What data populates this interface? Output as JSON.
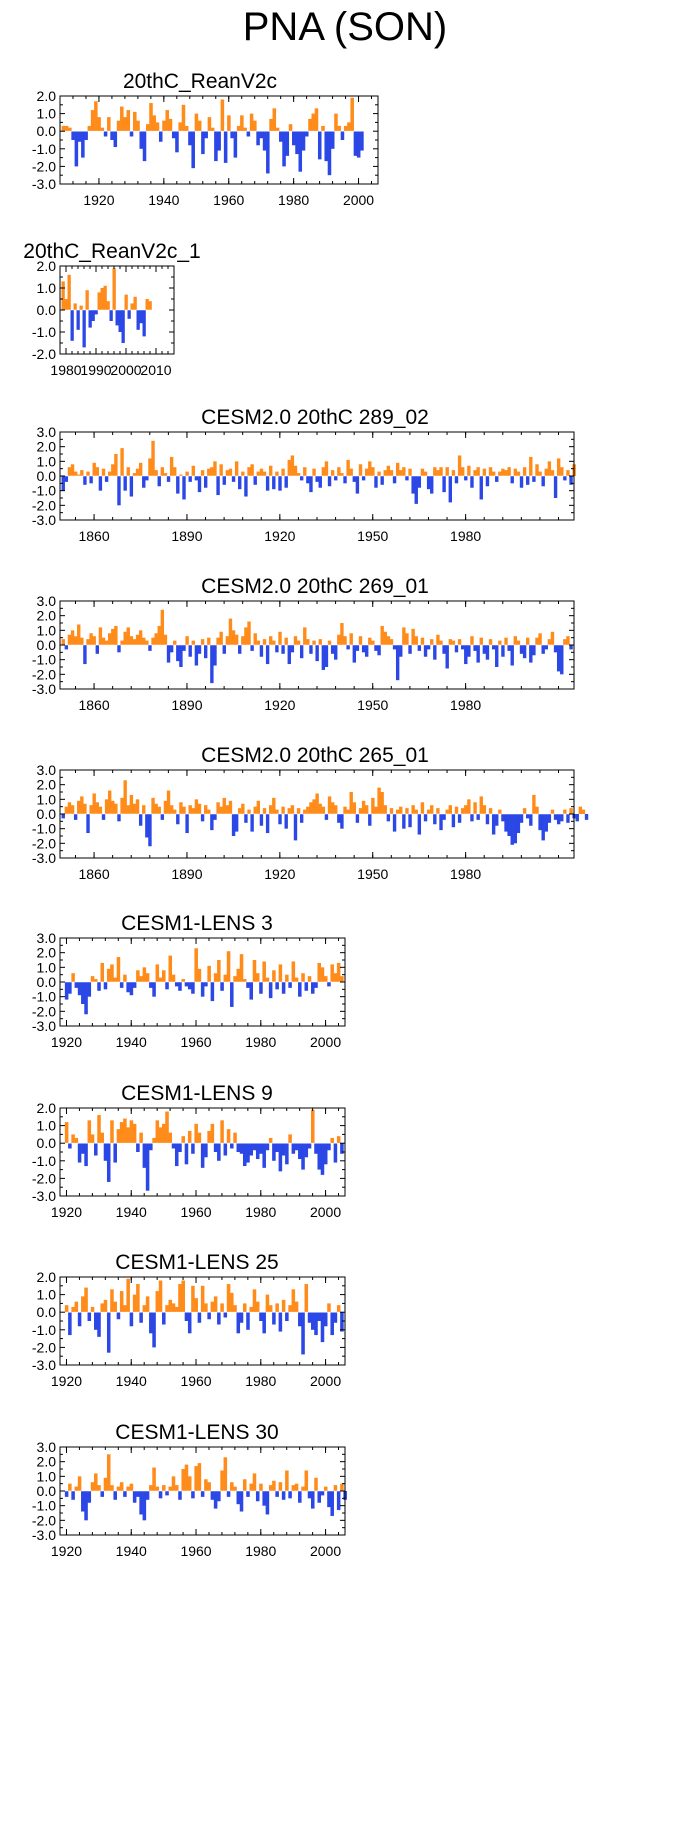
{
  "page_title": "PNA (SON)",
  "colors": {
    "positive": "#ff8c1a",
    "negative": "#2b47e6",
    "axis": "#000000"
  },
  "chart_data": [
    {
      "type": "area",
      "title": "20thC_ReanV2c",
      "x_range": [
        1908,
        2006
      ],
      "ylim": [
        -3,
        2
      ],
      "yticks": [
        "2.0",
        "1.0",
        "0.0",
        "-1.0",
        "-2.0",
        "-3.0"
      ],
      "ytick_values": [
        2,
        1,
        0,
        -1,
        -2,
        -3
      ],
      "xticks": [
        "1920",
        "1940",
        "1960",
        "1980",
        "2000"
      ],
      "xtick_values": [
        1920,
        1940,
        1960,
        1980,
        2000
      ],
      "x_start": 1909,
      "values": [
        0.3,
        0.3,
        0.2,
        -0.5,
        -2.0,
        -0.6,
        -1.5,
        -0.5,
        0.3,
        1.2,
        1.7,
        0.8,
        0.2,
        -0.3,
        0.8,
        -0.5,
        -0.9,
        0.6,
        1.4,
        0.8,
        1.2,
        -0.3,
        1.1,
        0.6,
        -1.0,
        -1.7,
        0.4,
        1.6,
        0.9,
        0.5,
        -0.6,
        0.6,
        1.2,
        0.7,
        -0.4,
        -1.2,
        0.5,
        1.5,
        0.3,
        -0.8,
        -2.1,
        1.0,
        0.6,
        -1.3,
        -0.4,
        0.8,
        0.2,
        -1.7,
        -1.1,
        1.8,
        -1.8,
        0.9,
        -0.4,
        -1.5,
        0.3,
        0.9,
        0.2,
        -0.3,
        1.0,
        0.6,
        -0.8,
        -0.4,
        -1.1,
        -2.4,
        0.7,
        1.3,
        0.2,
        -0.6,
        -2.0,
        -1.4,
        0.4,
        -0.8,
        -1.3,
        -2.3,
        -1.1,
        -0.3,
        0.7,
        1.0,
        1.3,
        -1.6,
        0.3,
        -1.7,
        -2.5,
        -1.0,
        1.0,
        0.3,
        -0.5,
        0.3,
        0.5,
        1.9,
        -1.4,
        -1.5,
        -1.1
      ]
    },
    {
      "type": "area",
      "title": "20thC_ReanV2c_1",
      "x_range": [
        1978,
        2016
      ],
      "ylim": [
        -2,
        2
      ],
      "yticks": [
        "2.0",
        "1.0",
        "0.0",
        "-1.0",
        "-2.0"
      ],
      "ytick_values": [
        2,
        1,
        0,
        -1,
        -2
      ],
      "xticks": [
        "1980",
        "1990",
        "2000",
        "2010"
      ],
      "xtick_values": [
        1980,
        1990,
        2000,
        2010
      ],
      "x_start": 1979,
      "values": [
        1.3,
        0.5,
        1.6,
        -1.4,
        0.3,
        -0.9,
        0.2,
        -1.7,
        0.9,
        -0.8,
        -0.5,
        -0.2,
        0.8,
        1.0,
        1.1,
        0.4,
        -0.5,
        1.9,
        -0.7,
        -1.0,
        -1.5,
        0.7,
        -0.4,
        0.3,
        0.6,
        -0.9,
        -0.6,
        -1.2,
        0.5,
        0.4
      ]
    },
    {
      "type": "area",
      "title": "CESM2.0 20thC 289_02",
      "x_range": [
        1849,
        2015
      ],
      "ylim": [
        -3,
        3
      ],
      "yticks": [
        "3.0",
        "2.0",
        "1.0",
        "0.0",
        "-1.0",
        "-2.0",
        "-3.0"
      ],
      "ytick_values": [
        3,
        2,
        1,
        0,
        -1,
        -2,
        -3
      ],
      "xticks": [
        "1860",
        "1890",
        "1920",
        "1950",
        "1980"
      ],
      "xtick_values": [
        1860,
        1890,
        1920,
        1950,
        1980
      ],
      "x_start": 1850,
      "values": [
        -1.0,
        -0.4,
        0.6,
        0.8,
        0.3,
        0.1,
        0.4,
        -0.6,
        0.3,
        -0.5,
        0.9,
        0.6,
        -1.0,
        0.5,
        -0.4,
        0.3,
        0.8,
        1.5,
        -2.0,
        1.9,
        -1.0,
        0.6,
        -1.4,
        0.2,
        0.5,
        0.9,
        -0.8,
        -0.3,
        1.2,
        2.4,
        0.4,
        -0.7,
        0.6,
        0.2,
        -0.4,
        1.3,
        0.6,
        -1.2,
        0.1,
        -1.6,
        0.3,
        -0.4,
        0.7,
        -0.3,
        -1.1,
        0.4,
        -0.8,
        0.5,
        0.6,
        1.0,
        -1.3,
        0.8,
        -0.6,
        0.4,
        0.5,
        -0.4,
        1.0,
        -0.9,
        0.3,
        -1.4,
        0.6,
        0.8,
        -0.6,
        0.3,
        0.5,
        0.3,
        -1.0,
        0.7,
        -0.9,
        0.3,
        -1.0,
        0.5,
        -0.8,
        1.1,
        1.4,
        0.7,
        0.2,
        -0.3,
        0.6,
        -0.5,
        -1.1,
        0.5,
        -0.4,
        -0.8,
        0.6,
        1.0,
        -0.7,
        0.4,
        -0.3,
        0.6,
        0.2,
        -0.5,
        1.1,
        0.5,
        -0.4,
        -1.2,
        0.8,
        -0.3,
        0.5,
        1.0,
        0.6,
        -0.8,
        0.3,
        -0.6,
        0.4,
        0.7,
        0.4,
        -0.5,
        0.9,
        0.4,
        0.6,
        -0.3,
        0.5,
        -1.2,
        -1.9,
        -0.8,
        0.5,
        0.3,
        -0.9,
        -1.2,
        0.6,
        0.4,
        0.6,
        -1.1,
        0.6,
        -1.8,
        0.4,
        -0.5,
        1.4,
        0.6,
        -0.3,
        0.7,
        -0.8,
        0.4,
        0.6,
        -1.6,
        0.5,
        -0.7,
        0.6,
        0.3,
        -0.4,
        0.3,
        0.5,
        0.4,
        0.6,
        -0.5,
        0.5,
        0.3,
        -0.8,
        0.6,
        -0.6,
        1.3,
        -0.4,
        0.8,
        0.3,
        -0.7,
        0.5,
        1.0,
        0.4,
        -1.5,
        1.2,
        0.6,
        -0.3,
        0.4,
        -0.6,
        0.8
      ]
    },
    {
      "type": "area",
      "title": "CESM2.0 20thC 269_01",
      "x_range": [
        1849,
        2015
      ],
      "ylim": [
        -3,
        3
      ],
      "yticks": [
        "3.0",
        "2.0",
        "1.0",
        "0.0",
        "-1.0",
        "-2.0",
        "-3.0"
      ],
      "ytick_values": [
        3,
        2,
        1,
        0,
        -1,
        -2,
        -3
      ],
      "xticks": [
        "1860",
        "1890",
        "1920",
        "1950",
        "1980"
      ],
      "xtick_values": [
        1860,
        1890,
        1920,
        1950,
        1980
      ],
      "x_start": 1850,
      "values": [
        0.4,
        -0.3,
        0.7,
        1.0,
        0.6,
        1.4,
        0.5,
        -1.3,
        0.4,
        0.8,
        0.6,
        -0.6,
        1.2,
        0.5,
        0.3,
        0.8,
        1.1,
        1.3,
        -0.5,
        0.3,
        0.9,
        1.2,
        0.6,
        0.4,
        0.7,
        1.0,
        0.5,
        0.3,
        -0.4,
        0.5,
        0.8,
        1.3,
        2.4,
        0.7,
        -1.2,
        -0.5,
        0.3,
        -1.1,
        -1.5,
        -0.4,
        0.6,
        -0.8,
        0.3,
        -1.4,
        -0.6,
        0.4,
        -0.9,
        0.5,
        -2.6,
        -1.4,
        0.5,
        0.9,
        -0.6,
        0.6,
        1.8,
        1.0,
        0.7,
        -0.6,
        0.6,
        1.2,
        1.6,
        -0.4,
        0.8,
        0.3,
        -0.8,
        0.4,
        -1.3,
        0.6,
        0.3,
        -0.5,
        0.9,
        -0.6,
        0.5,
        -1.3,
        -0.5,
        0.6,
        0.3,
        -0.9,
        1.2,
        0.4,
        -0.6,
        0.3,
        -1.1,
        0.4,
        -1.7,
        -1.5,
        0.3,
        -0.6,
        -1.0,
        0.7,
        1.5,
        0.6,
        -0.3,
        0.8,
        -1.2,
        -0.4,
        0.6,
        -0.5,
        -0.8,
        0.5,
        0.3,
        -0.4,
        -0.7,
        1.3,
        0.9,
        0.6,
        0.4,
        -0.3,
        -2.4,
        -0.8,
        1.2,
        0.8,
        -0.6,
        1.1,
        0.6,
        -0.4,
        0.5,
        -0.8,
        -0.3,
        0.4,
        -1.0,
        0.7,
        0.3,
        -0.6,
        -1.6,
        0.4,
        0.3,
        -0.5,
        0.4,
        -0.3,
        -1.3,
        -0.8,
        0.6,
        -0.4,
        -1.2,
        0.5,
        -0.6,
        -1.0,
        0.4,
        -0.3,
        -1.5,
        0.3,
        -0.8,
        0.5,
        -0.4,
        -1.4,
        0.6,
        0.3,
        -0.6,
        -0.9,
        0.5,
        -1.2,
        -0.7,
        0.5,
        0.8,
        -0.6,
        -0.3,
        0.4,
        0.9,
        -0.5,
        -1.8,
        -2.0,
        0.4,
        0.6,
        -0.3
      ]
    },
    {
      "type": "area",
      "title": "CESM2.0 20thC 265_01",
      "x_range": [
        1849,
        2015
      ],
      "ylim": [
        -3,
        3
      ],
      "yticks": [
        "3.0",
        "2.0",
        "1.0",
        "0.0",
        "-1.0",
        "-2.0",
        "-3.0"
      ],
      "ytick_values": [
        3,
        2,
        1,
        0,
        -1,
        -2,
        -3
      ],
      "xticks": [
        "1860",
        "1890",
        "1920",
        "1950",
        "1980"
      ],
      "xtick_values": [
        1860,
        1890,
        1920,
        1950,
        1980
      ],
      "x_start": 1850,
      "values": [
        -0.3,
        0.5,
        0.8,
        0.6,
        -0.4,
        0.9,
        1.2,
        0.7,
        -1.3,
        0.6,
        1.4,
        0.8,
        0.5,
        -0.4,
        1.0,
        1.6,
        0.9,
        0.7,
        -0.5,
        1.1,
        2.3,
        0.6,
        1.3,
        0.7,
        1.0,
        -0.8,
        0.6,
        -1.6,
        -2.2,
        1.1,
        0.7,
        0.5,
        -0.4,
        0.9,
        1.6,
        0.6,
        0.3,
        -0.7,
        0.8,
        0.5,
        -1.3,
        0.6,
        0.4,
        1.0,
        0.7,
        -0.5,
        0.6,
        0.3,
        -1.1,
        -0.4,
        0.8,
        0.5,
        1.1,
        0.6,
        0.9,
        -1.5,
        -1.2,
        0.4,
        0.7,
        -0.6,
        0.3,
        -1.2,
        0.5,
        0.9,
        -0.8,
        0.4,
        -1.3,
        0.6,
        1.1,
        0.3,
        -0.7,
        0.5,
        -1.0,
        0.4,
        0.6,
        -1.8,
        0.4,
        -0.6,
        0.3,
        0.5,
        0.8,
        1.0,
        1.4,
        0.7,
        0.5,
        -0.4,
        1.2,
        0.8,
        0.6,
        -0.6,
        -1.0,
        0.5,
        0.3,
        1.5,
        0.8,
        -0.6,
        0.4,
        0.9,
        0.6,
        -0.8,
        1.1,
        0.5,
        1.8,
        1.5,
        0.6,
        -0.5,
        0.4,
        -1.2,
        0.3,
        0.5,
        -1.0,
        0.4,
        -0.9,
        0.6,
        0.3,
        -1.4,
        0.8,
        -0.5,
        0.3,
        0.6,
        -0.7,
        0.4,
        -1.1,
        -0.4,
        0.3,
        0.6,
        -0.9,
        0.5,
        -0.6,
        0.4,
        0.6,
        1.0,
        -0.5,
        0.8,
        -0.4,
        1.2,
        0.6,
        -0.7,
        0.4,
        -1.4,
        -0.8,
        0.3,
        -0.5,
        -1.2,
        -1.5,
        -2.1,
        -2.0,
        -1.3,
        -0.6,
        0.4,
        -0.3,
        -0.8,
        1.3,
        0.5,
        -1.1,
        -1.8,
        -1.2,
        -0.6,
        0.3,
        -0.4,
        -0.7,
        -0.5,
        0.3,
        -0.6,
        0.4,
        -0.3,
        -0.5,
        0.5,
        0.3,
        -0.4
      ]
    },
    {
      "type": "area",
      "title": "CESM1-LENS 3",
      "x_range": [
        1918,
        2006
      ],
      "ylim": [
        -3,
        3
      ],
      "yticks": [
        "3.0",
        "2.0",
        "1.0",
        "0.0",
        "-1.0",
        "-2.0",
        "-3.0"
      ],
      "ytick_values": [
        3,
        2,
        1,
        0,
        -1,
        -2,
        -3
      ],
      "xticks": [
        "1920",
        "1940",
        "1960",
        "1980",
        "2000"
      ],
      "xtick_values": [
        1920,
        1940,
        1960,
        1980,
        2000
      ],
      "x_start": 1920,
      "values": [
        -1.2,
        -0.8,
        0.6,
        -0.4,
        -0.9,
        -1.5,
        -2.2,
        -1.0,
        0.4,
        0.2,
        -0.6,
        1.3,
        -0.5,
        0.9,
        1.2,
        0.3,
        1.7,
        -0.4,
        0.5,
        -0.7,
        -0.9,
        -0.4,
        0.8,
        0.4,
        1.0,
        0.6,
        -0.4,
        -1.0,
        1.2,
        0.3,
        0.8,
        -0.5,
        1.8,
        0.5,
        -0.3,
        -0.6,
        0.2,
        -0.3,
        -0.5,
        -0.8,
        2.3,
        0.9,
        -1.0,
        -0.3,
        1.1,
        -1.3,
        0.6,
        1.5,
        -0.6,
        0.5,
        2.1,
        -1.7,
        0.4,
        0.9,
        1.9,
        0.2,
        -0.4,
        -1.2,
        1.5,
        0.6,
        -0.8,
        1.4,
        0.3,
        -1.1,
        0.8,
        -0.5,
        1.2,
        -0.8,
        0.5,
        -0.4,
        1.4,
        0.3,
        -1.0,
        0.6,
        -0.6,
        0.4,
        -0.8,
        -0.4,
        1.3,
        1.0,
        0.4,
        -0.3,
        1.2,
        0.6,
        1.3,
        0.4
      ]
    },
    {
      "type": "area",
      "title": "CESM1-LENS 9",
      "x_range": [
        1918,
        2006
      ],
      "ylim": [
        -3,
        2
      ],
      "yticks": [
        "2.0",
        "1.0",
        "0.0",
        "-1.0",
        "-2.0",
        "-3.0"
      ],
      "ytick_values": [
        2,
        1,
        0,
        -1,
        -2,
        -3
      ],
      "xticks": [
        "1920",
        "1940",
        "1960",
        "1980",
        "2000"
      ],
      "xtick_values": [
        1920,
        1940,
        1960,
        1980,
        2000
      ],
      "x_start": 1920,
      "values": [
        1.2,
        -0.3,
        0.5,
        0.3,
        -1.1,
        -0.6,
        -1.3,
        1.3,
        0.5,
        -0.7,
        1.6,
        0.6,
        -1.0,
        -2.2,
        1.3,
        -1.1,
        0.8,
        1.2,
        1.4,
        0.9,
        1.3,
        1.1,
        -0.5,
        0.6,
        -1.4,
        -2.7,
        -0.4,
        0.3,
        1.3,
        0.9,
        1.1,
        1.8,
        0.6,
        -0.3,
        -1.3,
        -0.5,
        0.4,
        -1.2,
        0.7,
        -0.6,
        1.1,
        0.6,
        -1.4,
        -0.8,
        0.7,
        1.1,
        -0.5,
        -1.0,
        1.3,
        -0.7,
        0.8,
        -0.3,
        0.6,
        -0.5,
        -0.6,
        -1.3,
        -1.1,
        -0.7,
        -0.4,
        -0.9,
        -0.6,
        -1.4,
        -0.4,
        0.3,
        -1.0,
        -0.5,
        -1.6,
        -0.7,
        -1.2,
        0.5,
        -0.6,
        -0.4,
        -0.9,
        -1.5,
        -0.8,
        -0.3,
        1.9,
        -0.6,
        -1.5,
        -1.8,
        -1.2,
        -0.4,
        0.3,
        -1.1,
        0.4,
        -0.6
      ]
    },
    {
      "type": "area",
      "title": "CESM1-LENS 25",
      "x_range": [
        1918,
        2006
      ],
      "ylim": [
        -3,
        2
      ],
      "yticks": [
        "2.0",
        "1.0",
        "0.0",
        "-1.0",
        "-2.0",
        "-3.0"
      ],
      "ytick_values": [
        2,
        1,
        0,
        -1,
        -2,
        -3
      ],
      "xticks": [
        "1920",
        "1940",
        "1960",
        "1980",
        "2000"
      ],
      "xtick_values": [
        1920,
        1940,
        1960,
        1980,
        2000
      ],
      "x_start": 1920,
      "values": [
        0.4,
        -1.3,
        0.3,
        0.6,
        -0.8,
        0.9,
        1.4,
        -0.5,
        0.3,
        -1.0,
        -1.4,
        0.5,
        0.7,
        -2.3,
        1.3,
        0.6,
        -0.4,
        1.2,
        0.4,
        1.9,
        -0.8,
        1.0,
        1.6,
        -0.6,
        0.4,
        0.9,
        -1.2,
        -2.0,
        1.2,
        1.8,
        -0.7,
        0.4,
        0.7,
        0.5,
        0.3,
        1.6,
        1.8,
        -0.5,
        -1.2,
        1.5,
        0.8,
        -0.6,
        1.5,
        0.5,
        -0.4,
        0.6,
        0.9,
        -0.7,
        0.5,
        -0.3,
        1.6,
        1.1,
        0.4,
        -1.2,
        -0.6,
        0.5,
        -1.0,
        0.3,
        1.3,
        0.6,
        -0.5,
        -1.2,
        1.0,
        0.4,
        -0.7,
        0.5,
        -1.1,
        0.7,
        -0.5,
        0.4,
        1.3,
        0.6,
        -0.8,
        -2.4,
        1.6,
        -0.6,
        -1.0,
        -1.3,
        -0.5,
        -1.7,
        -0.8,
        0.5,
        -1.3,
        -0.6,
        0.4,
        -1.1
      ]
    },
    {
      "type": "area",
      "title": "CESM1-LENS 30",
      "x_range": [
        1918,
        2006
      ],
      "ylim": [
        -3,
        3
      ],
      "yticks": [
        "3.0",
        "2.0",
        "1.0",
        "0.0",
        "-1.0",
        "-2.0",
        "-3.0"
      ],
      "ytick_values": [
        3,
        2,
        1,
        0,
        -1,
        -2,
        -3
      ],
      "xticks": [
        "1920",
        "1940",
        "1960",
        "1980",
        "2000"
      ],
      "xtick_values": [
        1920,
        1940,
        1960,
        1980,
        2000
      ],
      "x_start": 1920,
      "values": [
        -0.4,
        0.5,
        -0.6,
        0.3,
        1.0,
        -1.4,
        -2.0,
        -0.8,
        0.6,
        1.2,
        0.4,
        -0.4,
        0.9,
        2.5,
        0.4,
        -0.6,
        0.3,
        0.6,
        -0.4,
        0.3,
        0.5,
        -0.8,
        -0.4,
        -1.6,
        -2.0,
        -0.6,
        0.4,
        1.6,
        0.3,
        -0.5,
        0.4,
        -0.3,
        0.3,
        1.0,
        0.4,
        -0.6,
        1.5,
        1.8,
        1.0,
        -0.5,
        1.7,
        1.9,
        -0.4,
        0.8,
        0.6,
        -0.6,
        -1.2,
        -0.7,
        1.4,
        2.3,
        -0.4,
        0.6,
        0.3,
        -0.9,
        -1.4,
        0.8,
        -0.4,
        0.5,
        1.2,
        -0.7,
        0.5,
        -1.0,
        -1.6,
        0.4,
        0.7,
        -0.4,
        0.6,
        -0.6,
        1.4,
        -0.5,
        0.4,
        0.5,
        -0.8,
        0.3,
        1.4,
        -0.5,
        -1.2,
        0.9,
        -0.8,
        -0.3,
        0.3,
        -1.1,
        -1.7,
        0.4,
        -1.3,
        0.5,
        -0.6
      ]
    }
  ]
}
